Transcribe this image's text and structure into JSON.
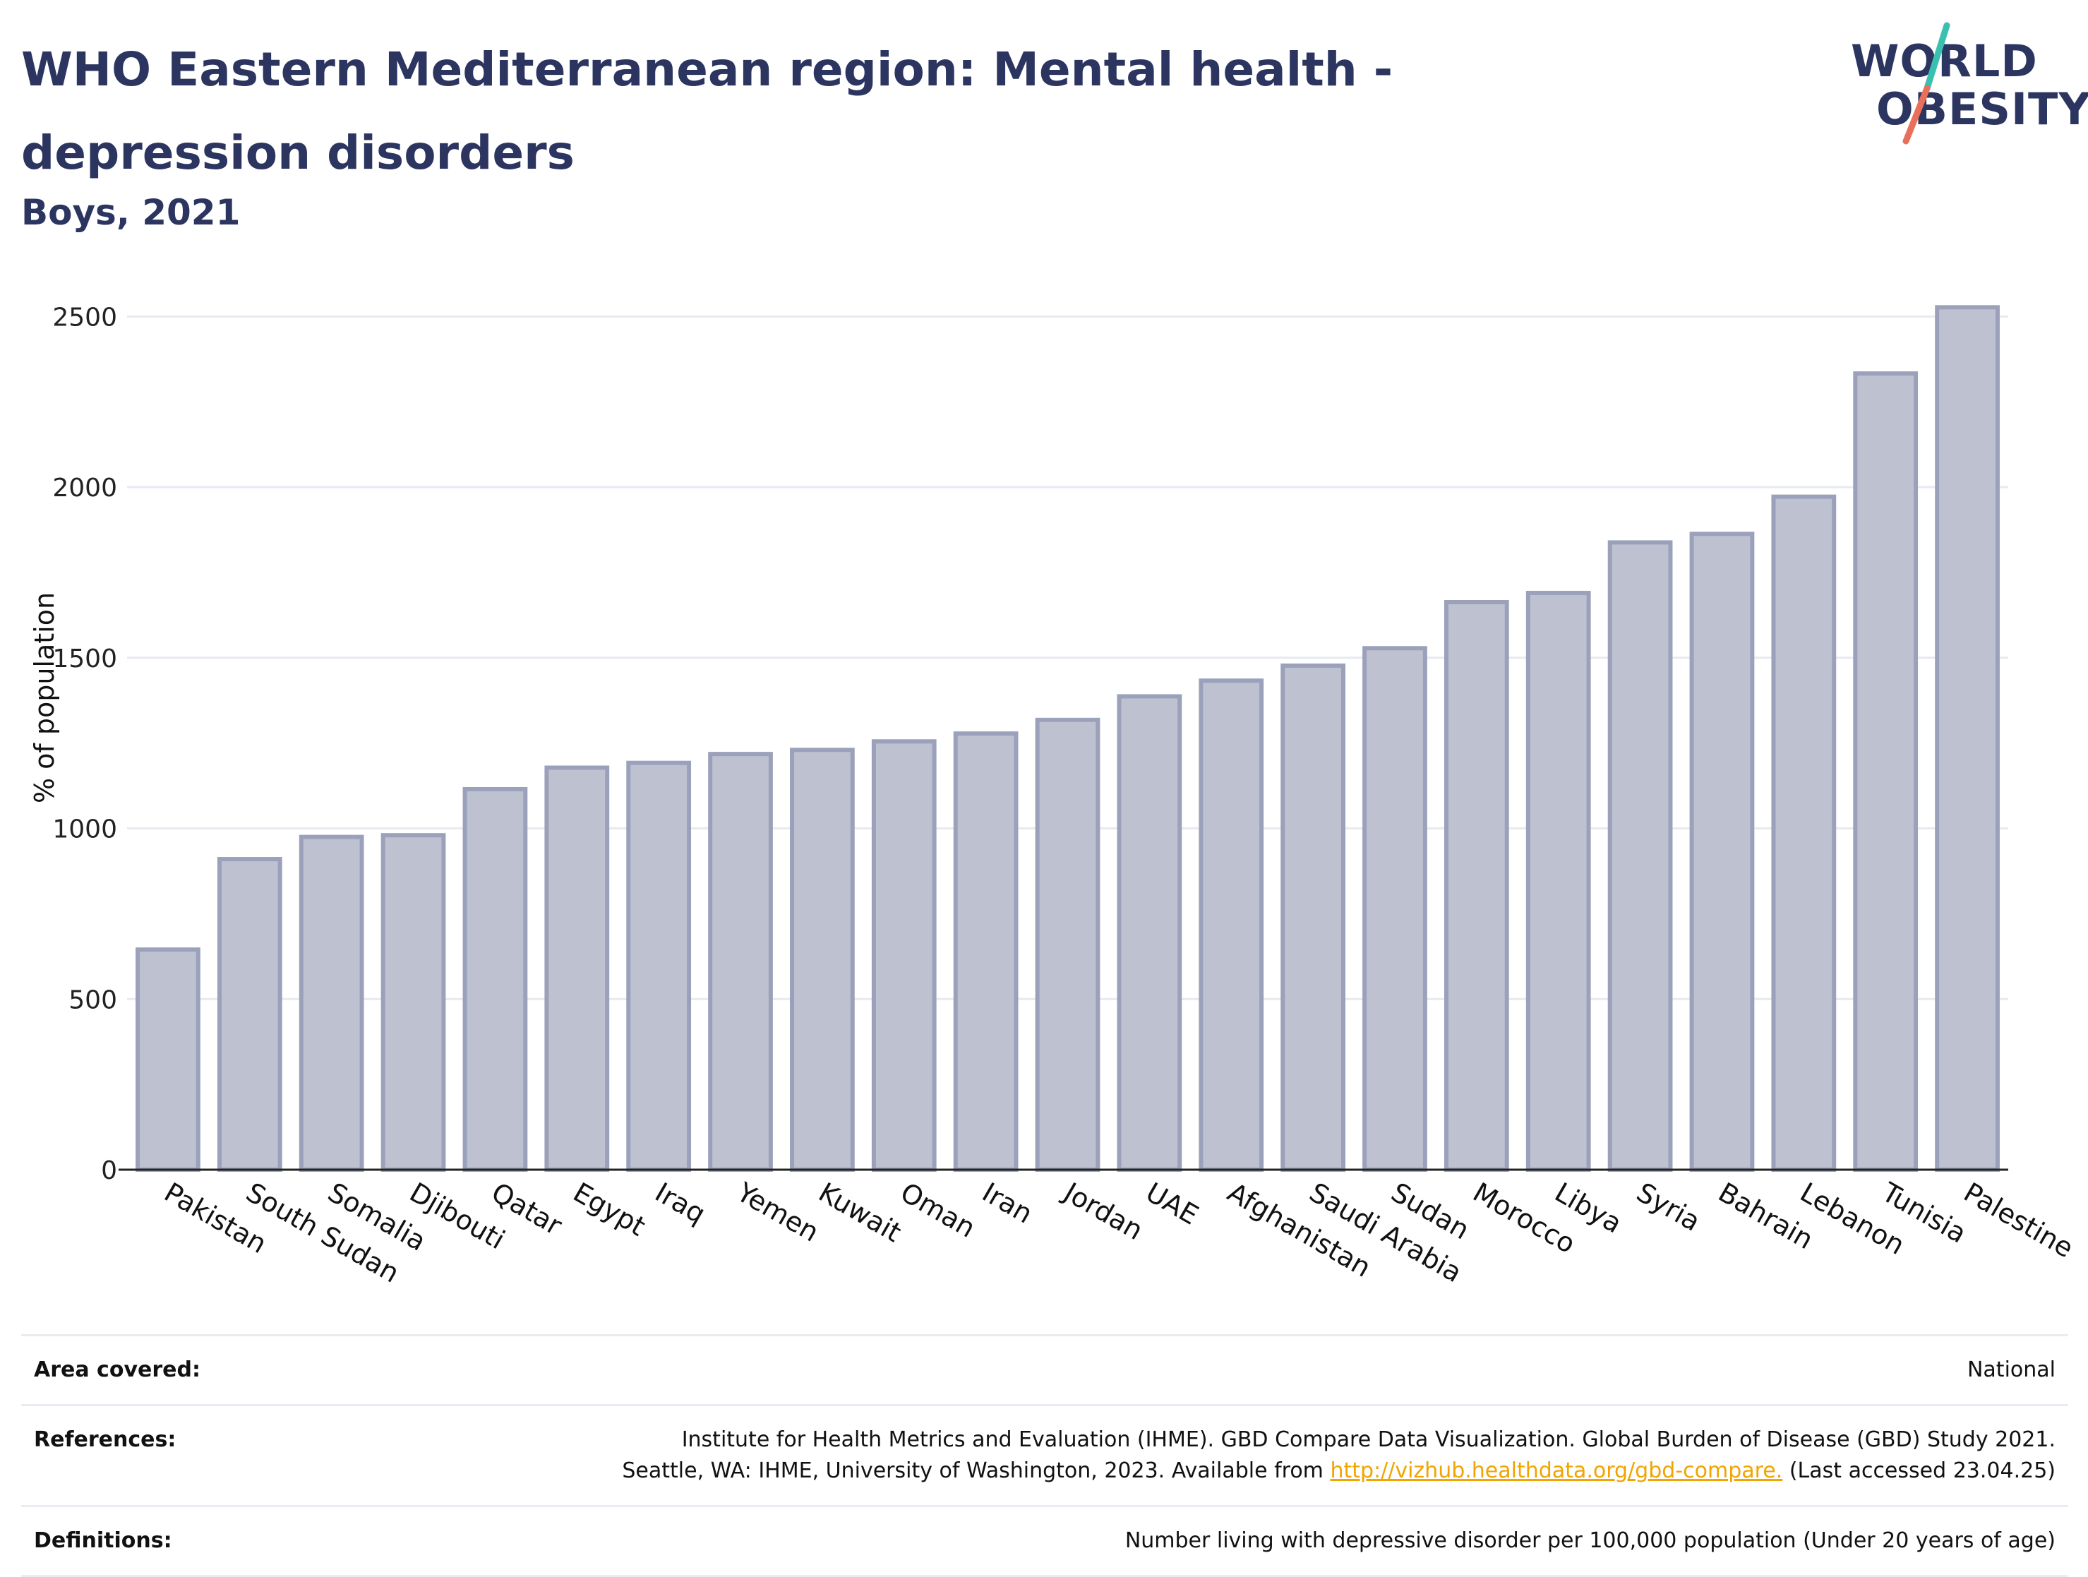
{
  "header": {
    "title": "WHO Eastern Mediterranean region: Mental health - depression disorders",
    "subtitle": "Boys, 2021"
  },
  "logo": {
    "line1": "WORLD",
    "line2": "OBESITY",
    "accent_teal": "#3bbfb0",
    "accent_coral": "#e8705a"
  },
  "chart_data": {
    "type": "bar",
    "categories": [
      "Pakistan",
      "South Sudan",
      "Somalia",
      "Djibouti",
      "Qatar",
      "Egypt",
      "Iraq",
      "Yemen",
      "Kuwait",
      "Oman",
      "Iran",
      "Jordan",
      "UAE",
      "Afghanistan",
      "Saudi Arabia",
      "Sudan",
      "Morocco",
      "Libya",
      "Syria",
      "Bahrain",
      "Lebanon",
      "Tunisia",
      "Palestine"
    ],
    "values": [
      645,
      910,
      975,
      980,
      1115,
      1178,
      1192,
      1218,
      1230,
      1255,
      1278,
      1318,
      1387,
      1433,
      1477,
      1528,
      1663,
      1690,
      1838,
      1863,
      1972,
      2333,
      2527
    ],
    "ylabel": "% of population",
    "yticks": [
      0,
      500,
      1000,
      1500,
      2000,
      2500
    ],
    "ylim": [
      0,
      2600
    ],
    "grid": true,
    "bar_fill": "#bec1cf",
    "bar_stroke": "#9ba1bb"
  },
  "footer": {
    "area": {
      "label": "Area covered:",
      "value": "National"
    },
    "references": {
      "label": "References:",
      "line1": "Institute for Health Metrics and Evaluation (IHME). GBD Compare Data Visualization. Global Burden of Disease (GBD) Study 2021.",
      "line2_pre": "Seattle, WA: IHME, University of Washington, 2023. Available from ",
      "link": "http://vizhub.healthdata.org/gbd-compare.",
      "line2_post": " (Last accessed 23.04.25)"
    },
    "definitions": {
      "label": "Definitions:",
      "value": "Number living with depressive disorder per 100,000 population (Under 20 years of age)"
    }
  }
}
